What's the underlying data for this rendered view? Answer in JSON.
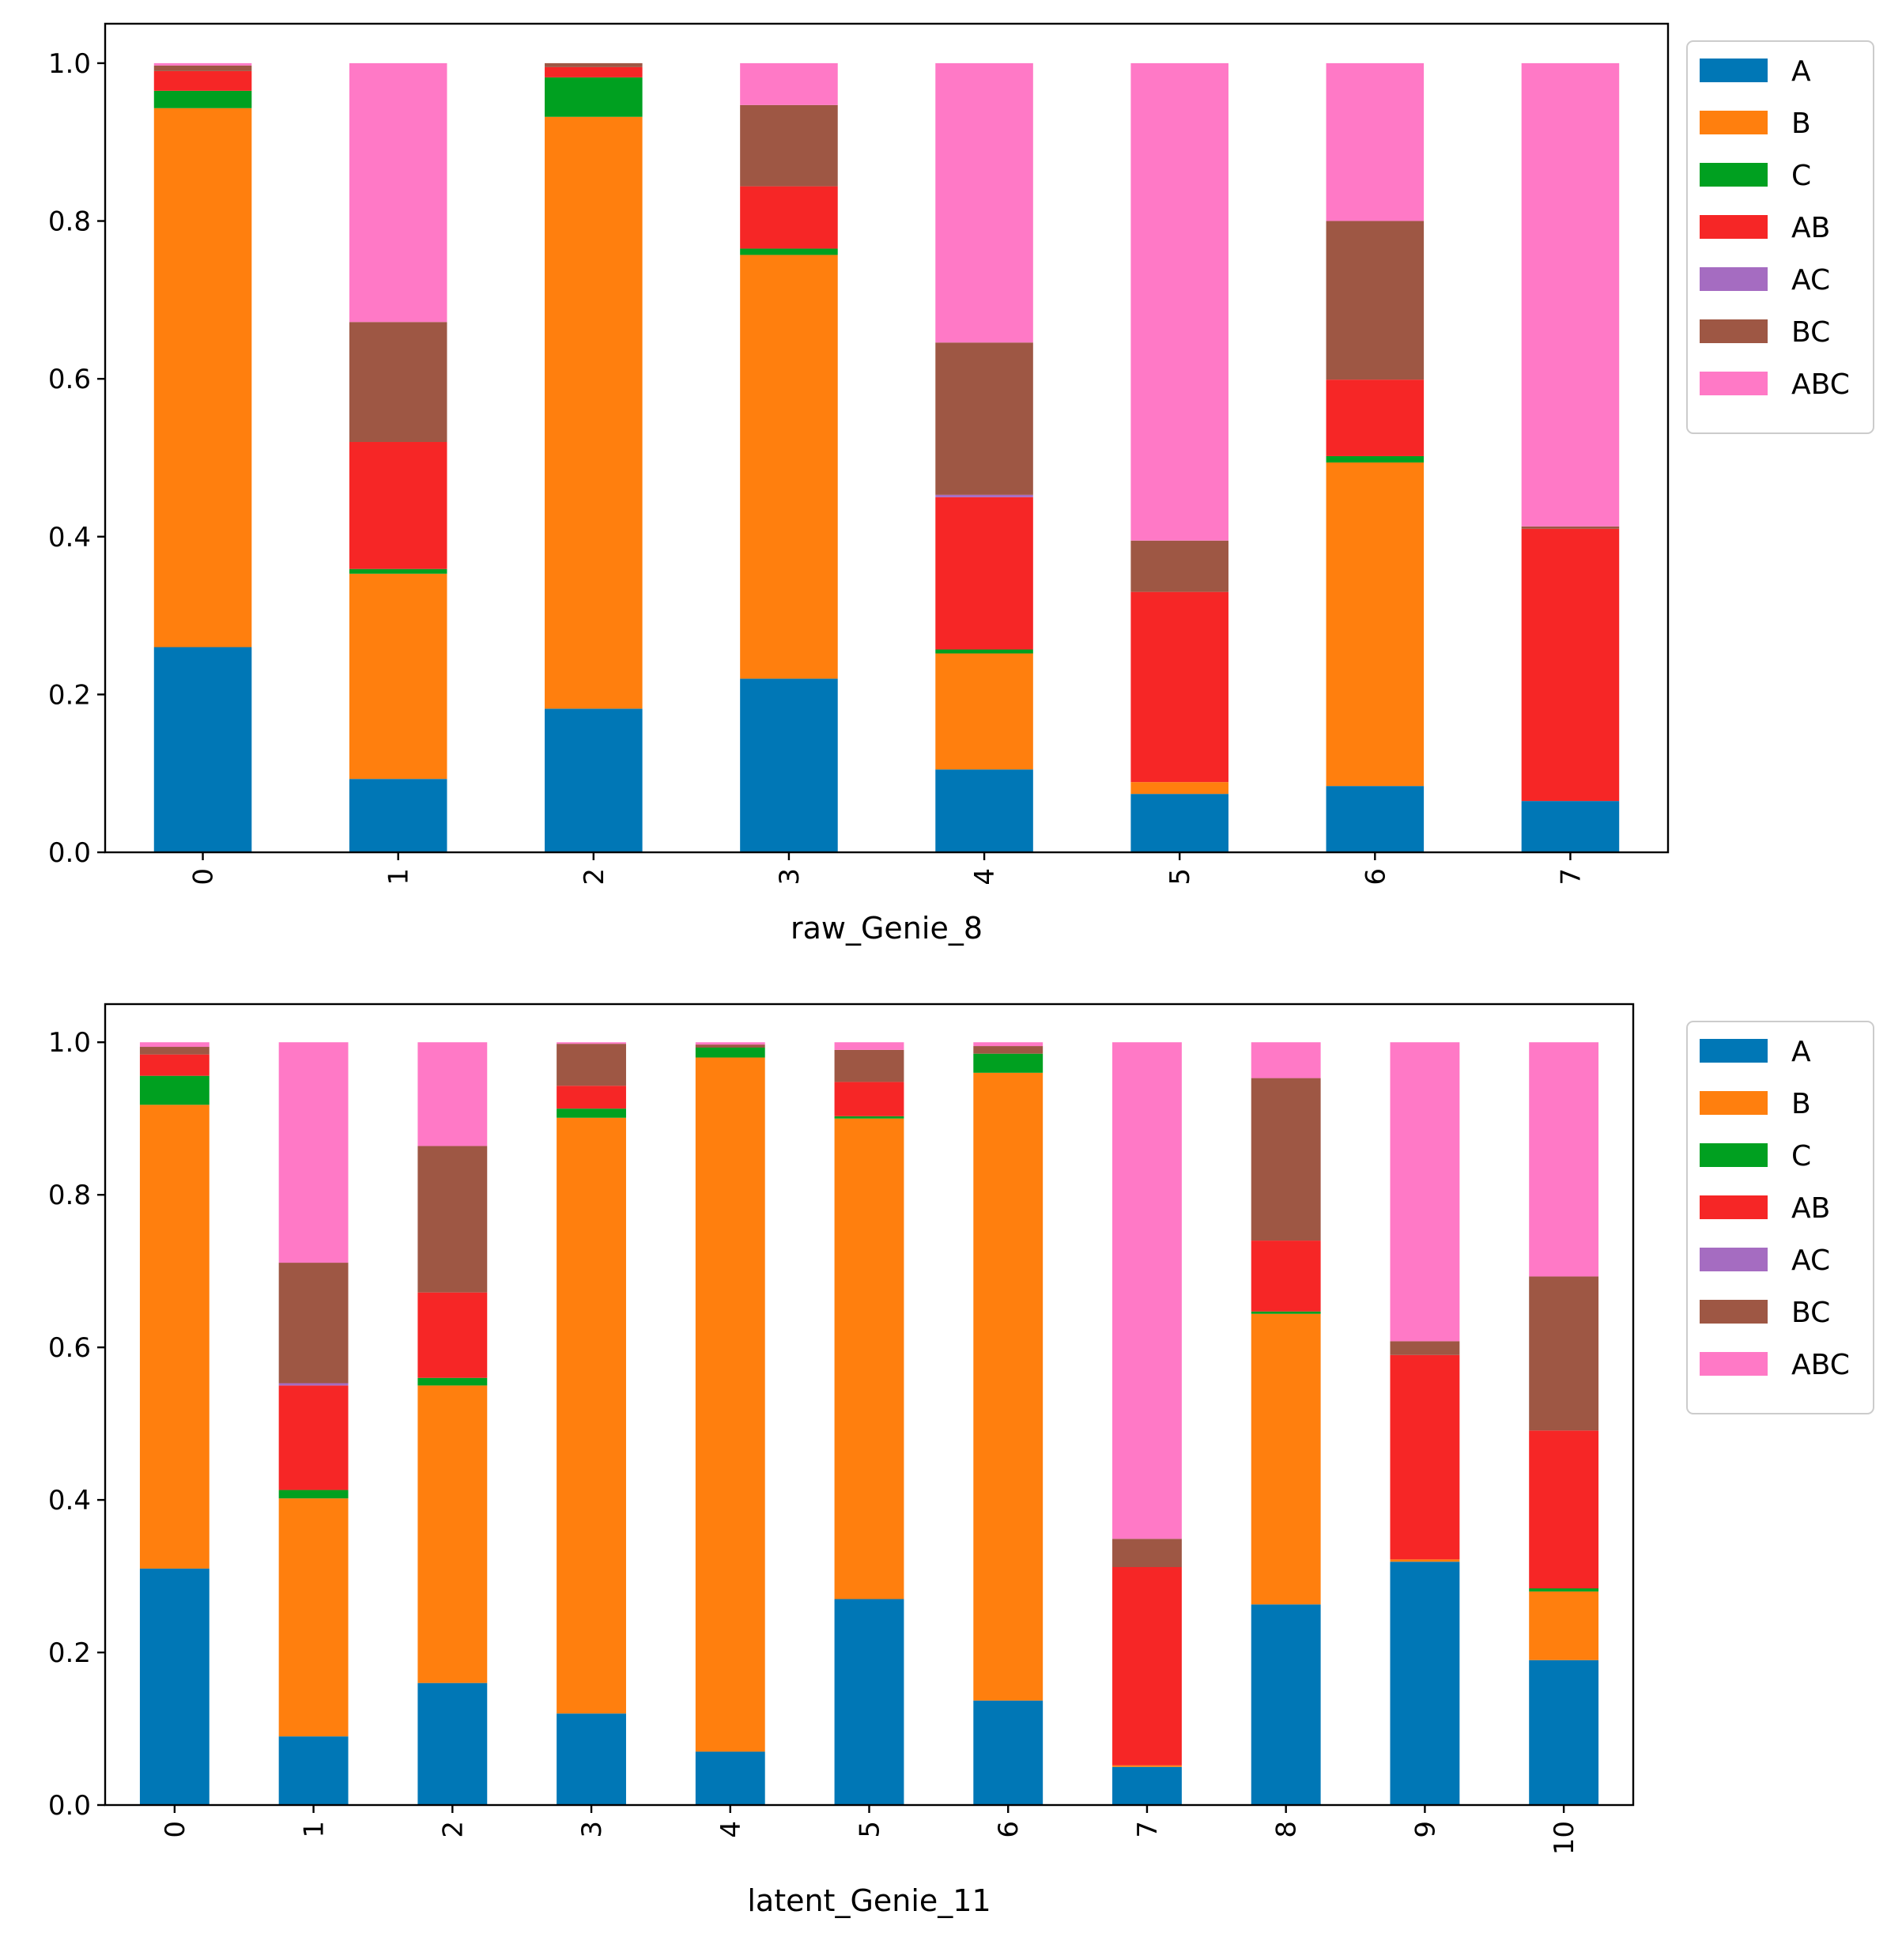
{
  "chart_data": [
    {
      "type": "bar",
      "stacked": true,
      "title": "",
      "xlabel": "raw_Genie_8",
      "ylabel": "",
      "ylim": [
        0,
        1.05
      ],
      "yticks": [
        "0.0",
        "0.2",
        "0.4",
        "0.6",
        "0.8",
        "1.0"
      ],
      "categories": [
        "0",
        "1",
        "2",
        "3",
        "4",
        "5",
        "6",
        "7"
      ],
      "legend_position": "outside-top-right",
      "series": [
        {
          "name": "A",
          "color": "#0077b6",
          "values": [
            0.26,
            0.093,
            0.182,
            0.22,
            0.105,
            0.074,
            0.084,
            0.065
          ]
        },
        {
          "name": "B",
          "color": "#ff7f0e",
          "values": [
            0.683,
            0.26,
            0.75,
            0.537,
            0.147,
            0.015,
            0.41,
            0.0
          ]
        },
        {
          "name": "C",
          "color": "#00a020",
          "values": [
            0.022,
            0.006,
            0.05,
            0.008,
            0.005,
            0.0,
            0.008,
            0.0
          ]
        },
        {
          "name": "AB",
          "color": "#f62626",
          "values": [
            0.025,
            0.161,
            0.013,
            0.079,
            0.193,
            0.241,
            0.097,
            0.345
          ]
        },
        {
          "name": "AC",
          "color": "#a56cc1",
          "values": [
            0.0,
            0.0,
            0.0,
            0.0,
            0.003,
            0.0,
            0.0,
            0.0
          ]
        },
        {
          "name": "BC",
          "color": "#9e5744",
          "values": [
            0.007,
            0.152,
            0.005,
            0.103,
            0.193,
            0.065,
            0.201,
            0.003
          ]
        },
        {
          "name": "ABC",
          "color": "#ff79c6",
          "values": [
            0.003,
            0.328,
            0.0,
            0.053,
            0.354,
            0.605,
            0.2,
            0.587
          ]
        }
      ]
    },
    {
      "type": "bar",
      "stacked": true,
      "title": "",
      "xlabel": "latent_Genie_11",
      "ylabel": "",
      "ylim": [
        0,
        1.05
      ],
      "yticks": [
        "0.0",
        "0.2",
        "0.4",
        "0.6",
        "0.8",
        "1.0"
      ],
      "categories": [
        "0",
        "1",
        "2",
        "3",
        "4",
        "5",
        "6",
        "7",
        "8",
        "9",
        "10"
      ],
      "legend_position": "outside-top-right",
      "series": [
        {
          "name": "A",
          "color": "#0077b6",
          "values": [
            0.31,
            0.09,
            0.16,
            0.12,
            0.07,
            0.27,
            0.137,
            0.05,
            0.263,
            0.319,
            0.19
          ]
        },
        {
          "name": "B",
          "color": "#ff7f0e",
          "values": [
            0.608,
            0.312,
            0.39,
            0.781,
            0.91,
            0.63,
            0.823,
            0.002,
            0.381,
            0.003,
            0.09
          ]
        },
        {
          "name": "C",
          "color": "#00a020",
          "values": [
            0.038,
            0.011,
            0.01,
            0.012,
            0.013,
            0.003,
            0.025,
            0.0,
            0.003,
            0.0,
            0.004
          ]
        },
        {
          "name": "AB",
          "color": "#f62626",
          "values": [
            0.028,
            0.137,
            0.112,
            0.03,
            0.0,
            0.045,
            0.0,
            0.26,
            0.093,
            0.268,
            0.207
          ]
        },
        {
          "name": "AC",
          "color": "#a56cc1",
          "values": [
            0.0,
            0.003,
            0.0,
            0.0,
            0.0,
            0.0,
            0.0,
            0.0,
            0.0,
            0.0,
            0.0
          ]
        },
        {
          "name": "BC",
          "color": "#9e5744",
          "values": [
            0.01,
            0.158,
            0.192,
            0.055,
            0.004,
            0.042,
            0.01,
            0.037,
            0.213,
            0.018,
            0.202
          ]
        },
        {
          "name": "ABC",
          "color": "#ff79c6",
          "values": [
            0.006,
            0.289,
            0.136,
            0.002,
            0.003,
            0.01,
            0.005,
            0.651,
            0.047,
            0.392,
            0.307
          ]
        }
      ]
    }
  ]
}
